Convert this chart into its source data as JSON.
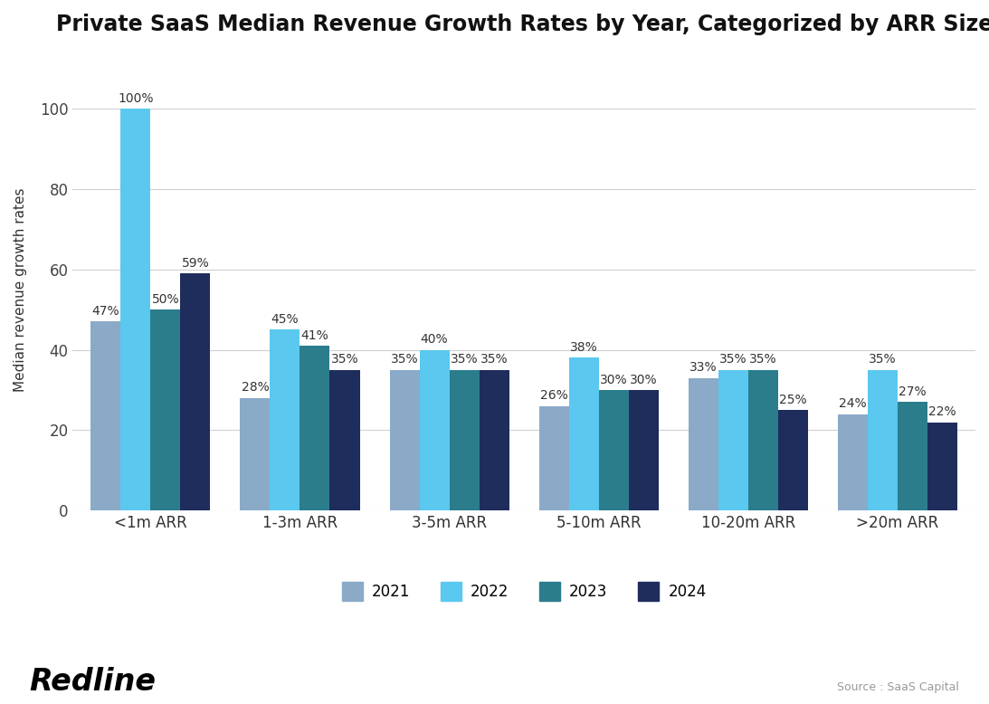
{
  "title": "Private SaaS Median Revenue Growth Rates by Year, Categorized by ARR Size",
  "ylabel": "Median revenue growth rates",
  "categories": [
    "<1m ARR",
    "1-3m ARR",
    "3-5m ARR",
    "5-10m ARR",
    "10-20m ARR",
    ">20m ARR"
  ],
  "series": {
    "2021": [
      47,
      28,
      35,
      26,
      33,
      24
    ],
    "2022": [
      100,
      45,
      40,
      38,
      35,
      35
    ],
    "2023": [
      50,
      41,
      35,
      30,
      35,
      27
    ],
    "2024": [
      59,
      35,
      35,
      30,
      25,
      22
    ]
  },
  "colors": {
    "2021": "#8aaac8",
    "2022": "#5bc8f0",
    "2023": "#2b7d8c",
    "2024": "#1e2d5c"
  },
  "ylim": [
    0,
    110
  ],
  "yticks": [
    0,
    20,
    40,
    60,
    80,
    100
  ],
  "background_color": "#ffffff",
  "grid_color": "#d0d0d0",
  "title_fontsize": 17,
  "label_fontsize": 11,
  "tick_fontsize": 12,
  "legend_fontsize": 12,
  "bar_label_fontsize": 10,
  "source_text": "Source : SaaS Capital",
  "redline_text": "Redline"
}
